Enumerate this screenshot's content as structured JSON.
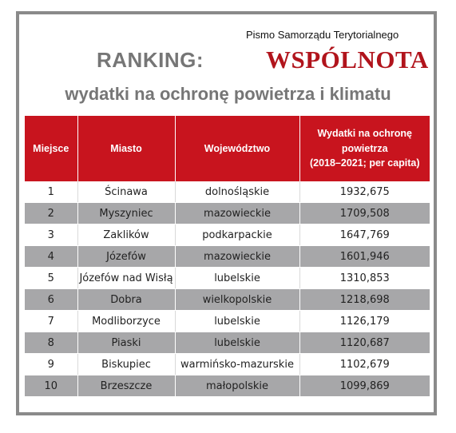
{
  "publication": "Pismo Samorządu Terytorialnego",
  "ranking_label": "RANKING:",
  "brand": "WSPÓLNOTA",
  "headline": "wydatki na ochronę powietrza i klimatu",
  "colors": {
    "header_red": "#c8141e",
    "brand_red": "#b1141c",
    "stripe_gray": "#a7a7a9",
    "title_gray": "#767676"
  },
  "table": {
    "headers": [
      "Miejsce",
      "Miasto",
      "Województwo",
      "Wydatki na ochronę powietrza (2018–2021; per capita)"
    ],
    "header_lines": {
      "col4": [
        "Wydatki na ochronę",
        "powietrza",
        "(2018–2021; per capita)"
      ]
    },
    "rows": [
      [
        "1",
        "Ścinawa",
        "dolnośląskie",
        "1932,675"
      ],
      [
        "2",
        "Myszyniec",
        "mazowieckie",
        "1709,508"
      ],
      [
        "3",
        "Zaklików",
        "podkarpackie",
        "1647,769"
      ],
      [
        "4",
        "Józefów",
        "mazowieckie",
        "1601,946"
      ],
      [
        "5",
        "Józefów nad Wisłą",
        "lubelskie",
        "1310,853"
      ],
      [
        "6",
        "Dobra",
        "wielkopolskie",
        "1218,698"
      ],
      [
        "7",
        "Modliborzyce",
        "lubelskie",
        "1126,179"
      ],
      [
        "8",
        "Piaski",
        "lubelskie",
        "1120,687"
      ],
      [
        "9",
        "Biskupiec",
        "warmińsko-mazurskie",
        "1102,679"
      ],
      [
        "10",
        "Brzeszcze",
        "małopolskie",
        "1099,869"
      ]
    ]
  }
}
